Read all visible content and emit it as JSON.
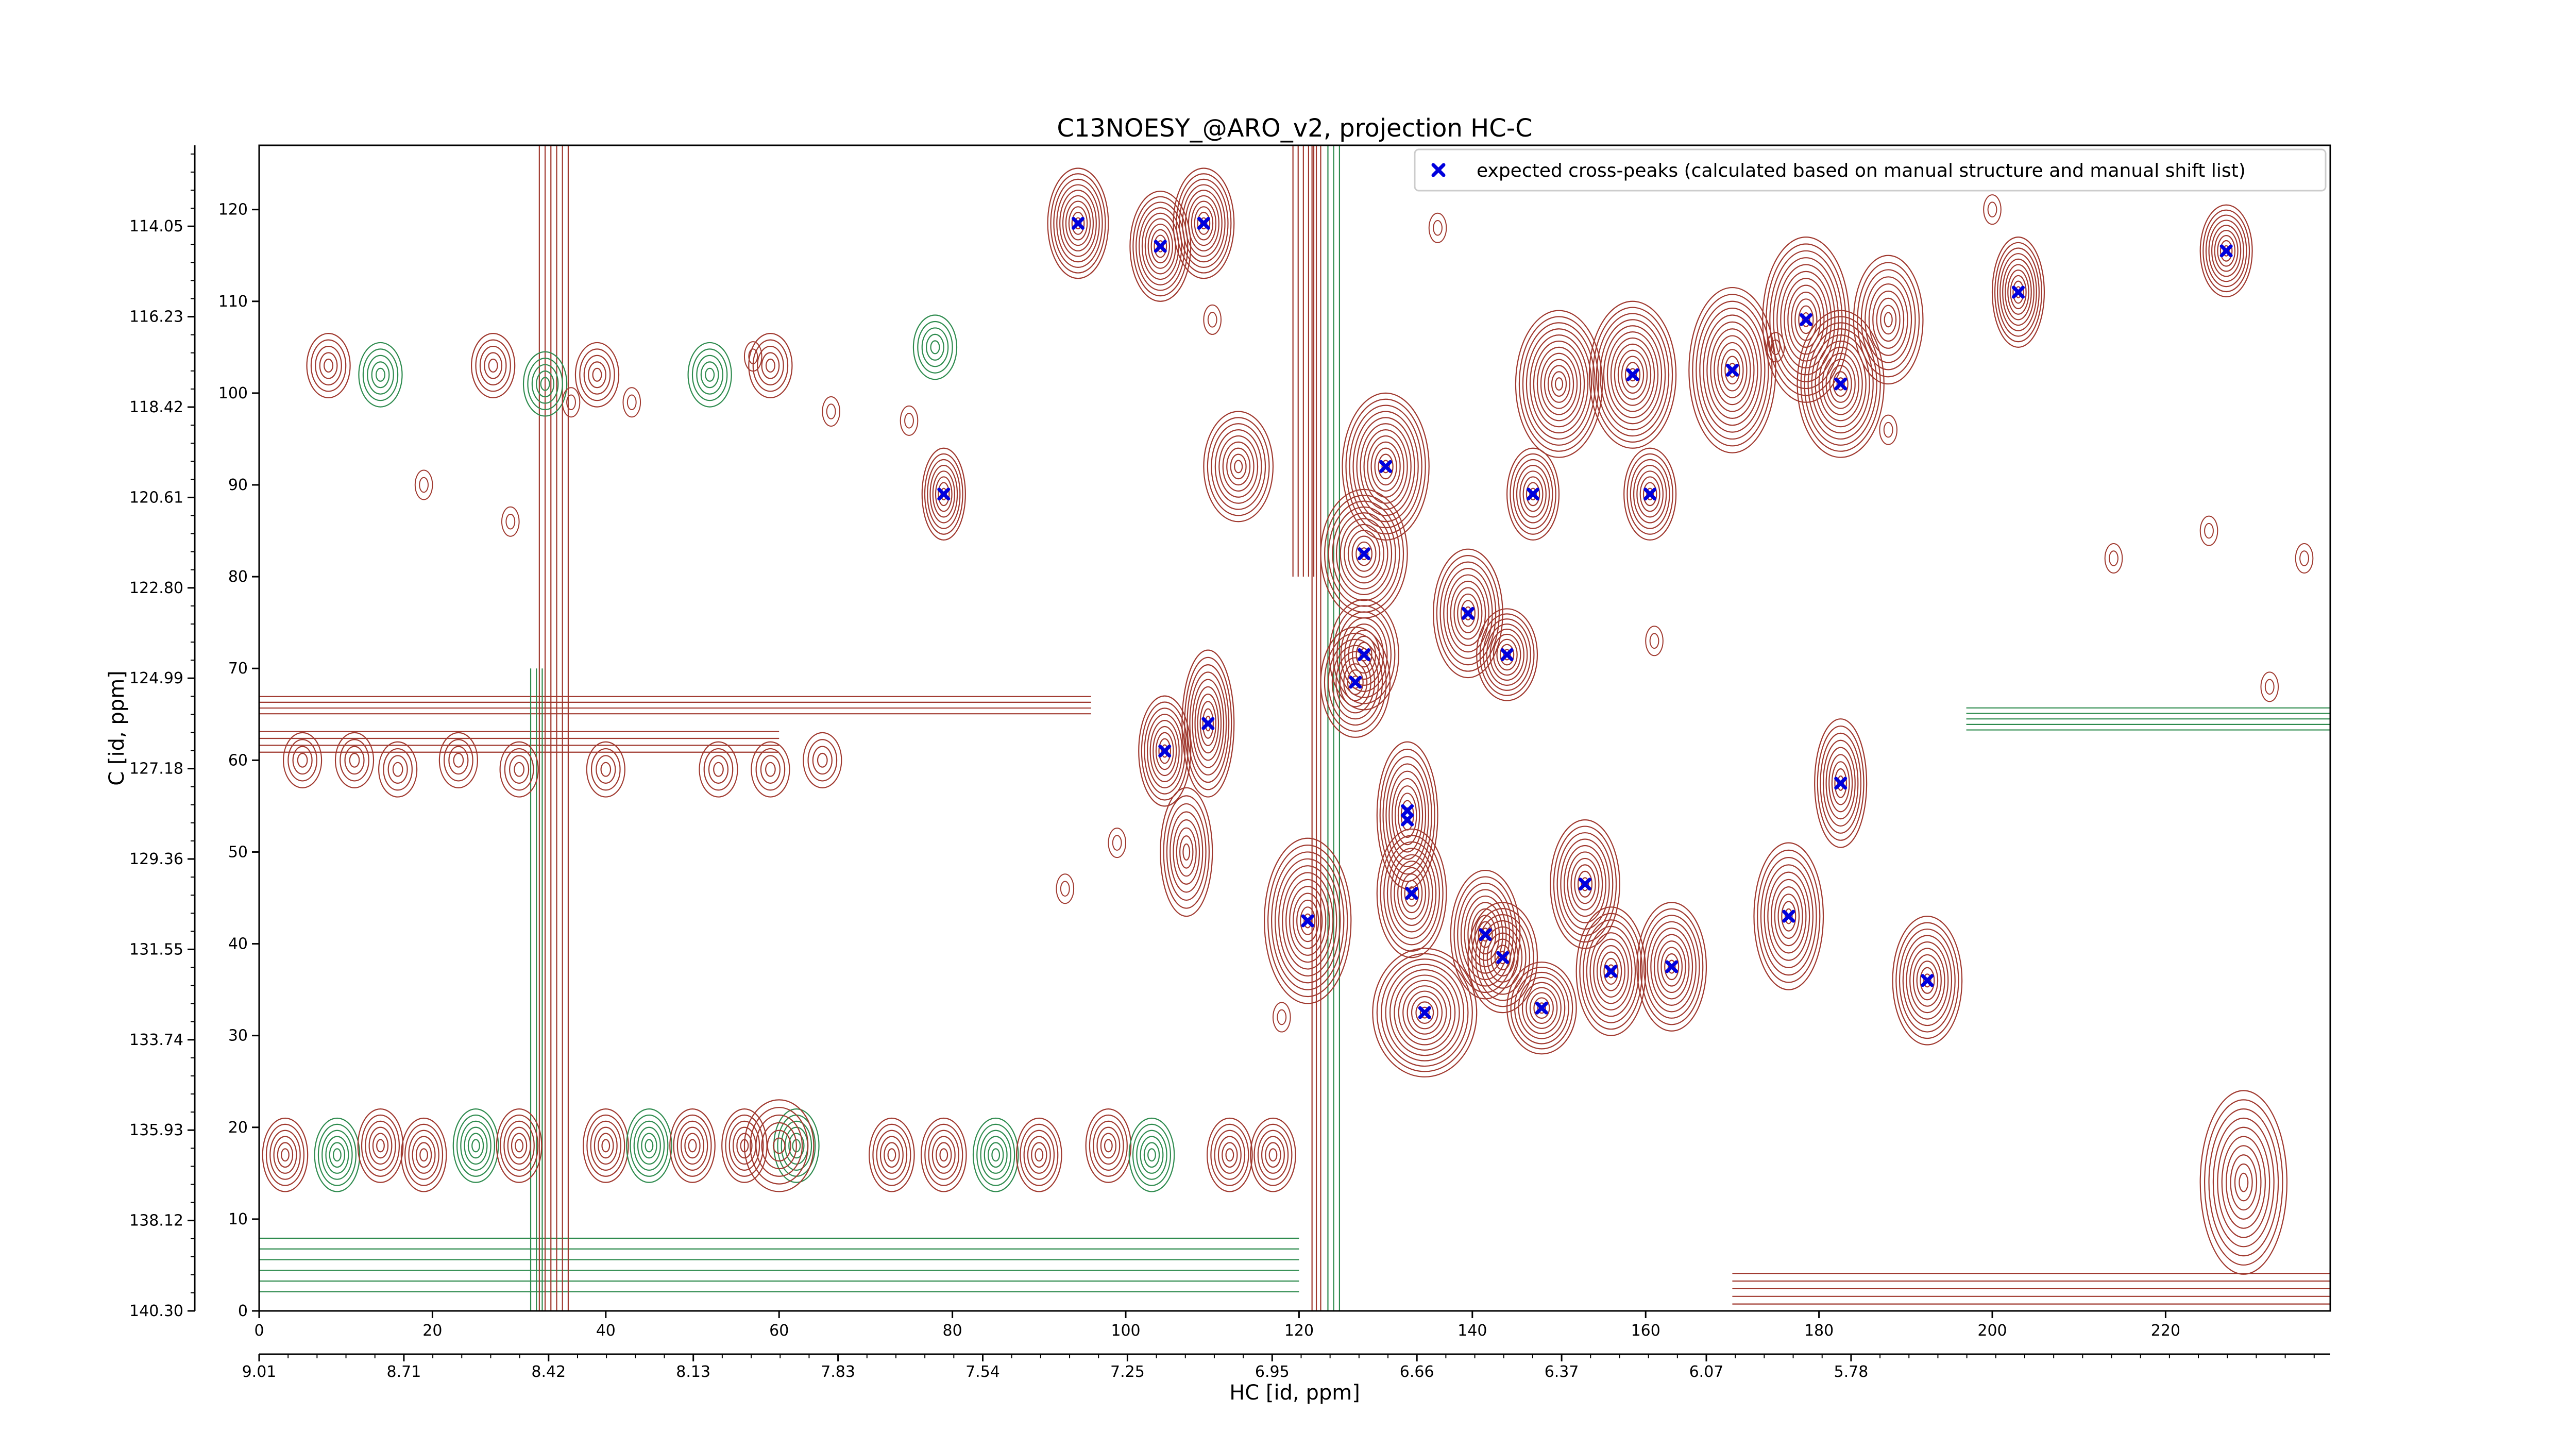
{
  "chart_data": {
    "type": "scatter",
    "title": "C13NOESY_@ARO_v2, projection HC-C",
    "xlabel": "HC [id, ppm]",
    "ylabel": "C [id, ppm]",
    "x_index_range": [
      0,
      239
    ],
    "y_index_range": [
      0,
      127
    ],
    "x_index_ticks": [
      "0",
      "20",
      "40",
      "60",
      "80",
      "100",
      "120",
      "140",
      "160",
      "180",
      "200",
      "220"
    ],
    "y_index_ticks": [
      "0",
      "10",
      "20",
      "30",
      "40",
      "50",
      "60",
      "70",
      "80",
      "90",
      "100",
      "110",
      "120"
    ],
    "x_ppm_tick_labels": [
      "9.01",
      "8.71",
      "8.42",
      "8.13",
      "7.83",
      "7.54",
      "7.25",
      "6.95",
      "6.66",
      "6.37",
      "6.07",
      "5.78"
    ],
    "y_ppm_tick_labels": [
      "140.30",
      "138.12",
      "135.93",
      "133.74",
      "131.55",
      "129.36",
      "127.18",
      "124.99",
      "122.80",
      "120.61",
      "118.42",
      "116.23",
      "114.05"
    ],
    "grid": false,
    "legend_position": "top-right",
    "contour_colors": {
      "positive": "#a0392f",
      "negative": "#2e8b4e"
    },
    "series": [
      {
        "name": "expected cross-peaks (calculated based on manual structure and manual shift list)",
        "color": "#0000dd",
        "marker": "X",
        "points": [
          [
            94.5,
            118.5
          ],
          [
            104,
            116
          ],
          [
            109,
            118.5
          ],
          [
            203,
            111
          ],
          [
            227,
            115.5
          ],
          [
            158.5,
            102
          ],
          [
            170,
            102.5
          ],
          [
            178.5,
            108
          ],
          [
            182.5,
            101
          ],
          [
            79,
            89
          ],
          [
            130,
            92
          ],
          [
            147,
            89
          ],
          [
            160.5,
            89
          ],
          [
            127.5,
            82.5
          ],
          [
            139.5,
            76
          ],
          [
            144,
            71.5
          ],
          [
            127.5,
            71.5
          ],
          [
            126.5,
            68.5
          ],
          [
            109.5,
            64
          ],
          [
            104.5,
            61
          ],
          [
            182.5,
            57.5
          ],
          [
            132.5,
            54.5
          ],
          [
            132.5,
            53.5
          ],
          [
            133,
            45.5
          ],
          [
            153,
            46.5
          ],
          [
            121,
            42.5
          ],
          [
            176.5,
            43
          ],
          [
            141.5,
            41
          ],
          [
            143.5,
            38.5
          ],
          [
            156,
            37
          ],
          [
            163,
            37.5
          ],
          [
            192.5,
            36
          ],
          [
            134.5,
            32.5
          ],
          [
            148,
            33
          ]
        ]
      }
    ]
  }
}
